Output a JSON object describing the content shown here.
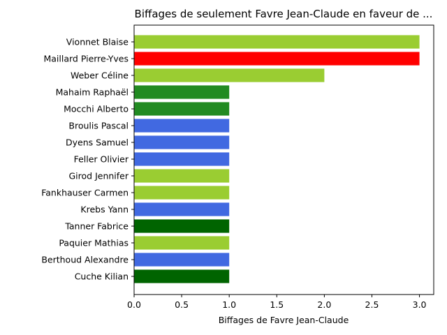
{
  "chart_data": {
    "type": "bar",
    "orientation": "horizontal",
    "title": "Biffages de seulement Favre Jean-Claude en faveur de ...",
    "xlabel": "Biffages de Favre Jean-Claude",
    "ylabel": "",
    "xlim": [
      0,
      3.15
    ],
    "xticks": [
      0.0,
      0.5,
      1.0,
      1.5,
      2.0,
      2.5,
      3.0
    ],
    "xtick_labels": [
      "0.0",
      "0.5",
      "1.0",
      "1.5",
      "2.0",
      "2.5",
      "3.0"
    ],
    "grid": false,
    "categories": [
      "Vionnet Blaise",
      "Maillard Pierre-Yves",
      "Weber Céline",
      "Mahaim Raphaël",
      "Mocchi Alberto",
      "Broulis Pascal",
      "Dyens Samuel",
      "Feller Olivier",
      "Girod Jennifer",
      "Fankhauser Carmen",
      "Krebs Yann",
      "Tanner Fabrice",
      "Paquier Mathias",
      "Berthoud Alexandre",
      "Cuche Kilian"
    ],
    "values": [
      3,
      3,
      2,
      1,
      1,
      1,
      1,
      1,
      1,
      1,
      1,
      1,
      1,
      1,
      1
    ],
    "colors": [
      "#9acd32",
      "#ff0000",
      "#9acd32",
      "#228b22",
      "#228b22",
      "#4169e1",
      "#4169e1",
      "#4169e1",
      "#9acd32",
      "#9acd32",
      "#4169e1",
      "#006400",
      "#9acd32",
      "#4169e1",
      "#006400"
    ]
  }
}
